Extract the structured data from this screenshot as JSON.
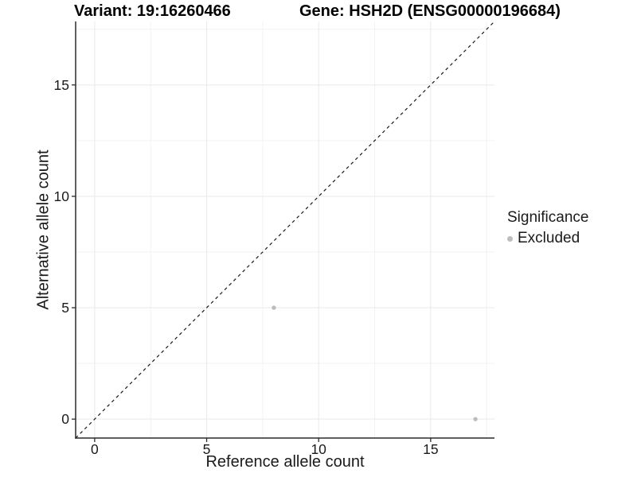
{
  "chart_data": {
    "type": "scatter",
    "title_left": "Variant: 19:16260466",
    "title_right": "Gene: HSH2D (ENSG00000196684)",
    "xlabel": "Reference allele count",
    "ylabel": "Alternative allele count",
    "xlim": [
      -0.85,
      17.85
    ],
    "ylim": [
      -0.85,
      17.85
    ],
    "x_ticks": [
      0,
      5,
      10,
      15
    ],
    "y_ticks": [
      0,
      5,
      10,
      15
    ],
    "x_minor_ticks": [
      2.5,
      7.5,
      12.5,
      17.5
    ],
    "y_minor_ticks": [
      2.5,
      7.5,
      12.5,
      17.5
    ],
    "grid": "major+minor",
    "series": [
      {
        "name": "Excluded",
        "color": "#bdbdbd",
        "points": [
          {
            "x": 8,
            "y": 5
          },
          {
            "x": 17,
            "y": 0
          }
        ]
      }
    ],
    "reference_line": {
      "type": "identity",
      "slope": 1,
      "intercept": 0,
      "linestyle": "dashed",
      "color": "#1a1a1a"
    },
    "legend": {
      "title": "Significance",
      "position": "right",
      "entries": [
        {
          "label": "Excluded",
          "color": "#bdbdbd"
        }
      ]
    }
  },
  "colors": {
    "background": "#ffffff",
    "grid_major": "#e9e9e9",
    "grid_minor": "#f2f2f2",
    "axis_line": "#2b2b2b",
    "tick_mark": "#2b2b2b",
    "text": "#1a1a1a",
    "title_text": "#000000"
  }
}
